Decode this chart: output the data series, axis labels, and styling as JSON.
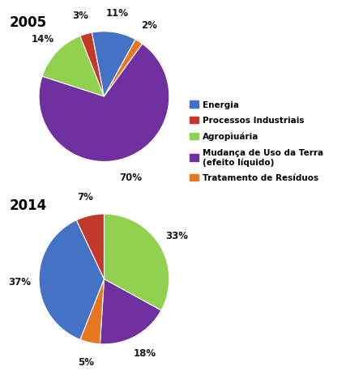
{
  "title_2005": "2005",
  "title_2014": "2014",
  "color_list": [
    "#4472C4",
    "#C0392B",
    "#92D050",
    "#7030A0",
    "#E87722"
  ],
  "pie_2005": {
    "values": [
      14,
      3,
      11,
      2,
      70
    ],
    "pct_labels": [
      "14%",
      "3%",
      "11%",
      "2%",
      "70%"
    ],
    "startangle": 162,
    "counterclock": false
  },
  "pie_2014": {
    "values": [
      33,
      18,
      5,
      37,
      7
    ],
    "pct_labels": [
      "33%",
      "18%",
      "5%",
      "37%",
      "7%"
    ],
    "startangle": 90,
    "counterclock": false
  },
  "legend_labels": [
    "Energia",
    "Processos Industriais",
    "Agropìuária",
    "Mudança de Uso da Terra\n(efeito líquido)",
    "Tratamento de Resíduos"
  ],
  "legend_colors": [
    "#4472C4",
    "#C0392B",
    "#92D050",
    "#7030A0",
    "#E87722"
  ],
  "bg_color": "#FFFFFF",
  "title_fontsize": 12,
  "pct_fontsize": 8.5,
  "legend_fontsize": 7.5
}
